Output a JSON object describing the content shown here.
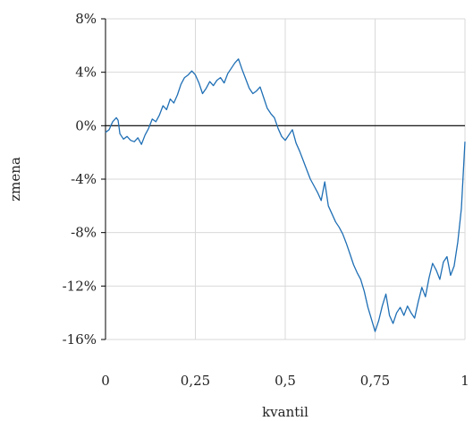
{
  "chart_data": {
    "type": "line",
    "xlabel": "kvantil",
    "ylabel": "zmena",
    "xlim": [
      0,
      1
    ],
    "ylim": [
      -16,
      8
    ],
    "x_ticks": [
      0,
      0.25,
      0.5,
      0.75,
      1
    ],
    "x_tick_labels": [
      "0",
      "0,25",
      "0,5",
      "0,75",
      "1"
    ],
    "y_ticks": [
      8,
      4,
      0,
      -4,
      -8,
      -12,
      -16
    ],
    "y_tick_labels": [
      "8%",
      "4%",
      "0%",
      "-4%",
      "-8%",
      "-12%",
      "-16%"
    ],
    "grid": true,
    "series_color": "#1f6fb5",
    "series": [
      {
        "x": [
          0.0,
          0.01,
          0.02,
          0.03,
          0.035,
          0.04,
          0.05,
          0.06,
          0.07,
          0.08,
          0.09,
          0.1,
          0.11,
          0.12,
          0.13,
          0.14,
          0.15,
          0.16,
          0.17,
          0.18,
          0.19,
          0.2,
          0.21,
          0.22,
          0.23,
          0.24,
          0.25,
          0.26,
          0.27,
          0.28,
          0.29,
          0.3,
          0.31,
          0.32,
          0.33,
          0.34,
          0.35,
          0.36,
          0.37,
          0.38,
          0.39,
          0.4,
          0.41,
          0.42,
          0.43,
          0.44,
          0.45,
          0.46,
          0.47,
          0.48,
          0.49,
          0.5,
          0.51,
          0.52,
          0.53,
          0.54,
          0.55,
          0.56,
          0.57,
          0.58,
          0.59,
          0.6,
          0.61,
          0.62,
          0.63,
          0.64,
          0.65,
          0.66,
          0.67,
          0.68,
          0.69,
          0.7,
          0.71,
          0.72,
          0.73,
          0.74,
          0.75,
          0.76,
          0.77,
          0.78,
          0.79,
          0.8,
          0.81,
          0.82,
          0.83,
          0.84,
          0.85,
          0.86,
          0.87,
          0.88,
          0.89,
          0.9,
          0.91,
          0.92,
          0.93,
          0.94,
          0.95,
          0.96,
          0.97,
          0.98,
          0.99,
          1.0
        ],
        "values": [
          -0.5,
          -0.3,
          0.3,
          0.6,
          0.4,
          -0.6,
          -1.0,
          -0.8,
          -1.1,
          -1.2,
          -0.9,
          -1.4,
          -0.7,
          -0.2,
          0.5,
          0.3,
          0.8,
          1.5,
          1.2,
          2.0,
          1.7,
          2.3,
          3.1,
          3.6,
          3.8,
          4.1,
          3.8,
          3.2,
          2.4,
          2.8,
          3.3,
          3.0,
          3.4,
          3.6,
          3.2,
          3.9,
          4.3,
          4.7,
          5.0,
          4.2,
          3.5,
          2.8,
          2.4,
          2.6,
          2.9,
          2.1,
          1.3,
          0.9,
          0.6,
          -0.2,
          -0.8,
          -1.1,
          -0.7,
          -0.3,
          -1.3,
          -1.9,
          -2.6,
          -3.3,
          -4.0,
          -4.5,
          -5.0,
          -5.6,
          -4.2,
          -6.0,
          -6.6,
          -7.2,
          -7.6,
          -8.1,
          -8.8,
          -9.6,
          -10.4,
          -11.0,
          -11.5,
          -12.4,
          -13.6,
          -14.5,
          -15.4,
          -14.6,
          -13.5,
          -12.6,
          -14.2,
          -14.8,
          -14.0,
          -13.6,
          -14.2,
          -13.5,
          -14.0,
          -14.4,
          -13.2,
          -12.1,
          -12.8,
          -11.4,
          -10.3,
          -10.8,
          -11.5,
          -10.2,
          -9.8,
          -11.2,
          -10.5,
          -8.7,
          -6.2,
          -1.2
        ]
      }
    ]
  }
}
